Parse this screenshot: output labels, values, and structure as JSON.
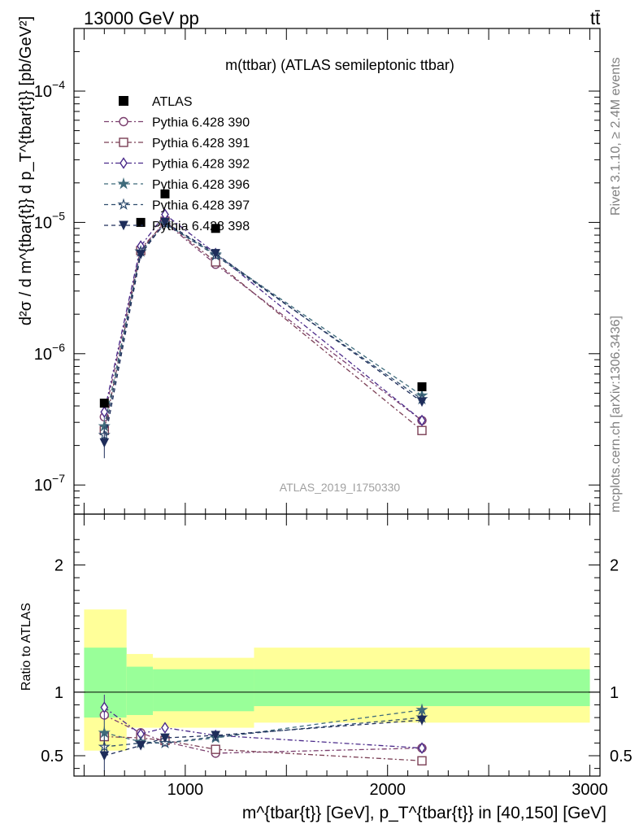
{
  "header": {
    "left": "13000 GeV pp",
    "right": "tt̄",
    "side_top": "Rivet 3.1.10, ≥ 2.4M events",
    "side_bottom": "mcplots.cern.ch [arXiv:1306.3436]"
  },
  "chart_data": [
    {
      "type": "line",
      "panel": "main",
      "title": "m(ttbar) (ATLAS semileptonic ttbar)",
      "watermark": "ATLAS_2019_I1750330",
      "ylabel": "d²σ / d m^{tbar{t}} d p_T^{tbar{t}} [pb/GeV²]",
      "yscale": "log",
      "ylim": [
        6e-08,
        0.0003
      ],
      "yticks": [
        {
          "value": 0.0001,
          "base": "10",
          "exp": "−4"
        },
        {
          "value": 1e-05,
          "base": "10",
          "exp": "−5"
        },
        {
          "value": 1e-06,
          "base": "10",
          "exp": "−6"
        },
        {
          "value": 1e-07,
          "base": "10",
          "exp": "−7"
        }
      ],
      "xlim": [
        450,
        3050
      ],
      "x": [
        600,
        780,
        900,
        1150,
        2170
      ],
      "data": {
        "name": "ATLAS",
        "values": [
          4.2e-07,
          1e-05,
          1.65e-05,
          9e-06,
          5.6e-07
        ]
      },
      "series": [
        {
          "name": "Pythia 6.428 390",
          "marker": "circle-open",
          "color": "#7b3f6e",
          "dash": "6,3,2,3",
          "values": [
            3.3e-07,
            6.3e-06,
            1e-05,
            4.8e-06,
            3.1e-07
          ],
          "errors": [
            4e-08,
            0,
            0,
            0,
            2e-08
          ]
        },
        {
          "name": "Pythia 6.428 391",
          "marker": "square-open",
          "color": "#7b3f55",
          "dash": "6,3,2,3",
          "values": [
            2.6e-07,
            6.1e-06,
            1.02e-05,
            5e-06,
            2.6e-07
          ],
          "errors": [
            3e-08,
            0,
            0,
            0,
            2e-08
          ]
        },
        {
          "name": "Pythia 6.428 392",
          "marker": "diamond-open",
          "color": "#4a2a8a",
          "dash": "6,3,2,3",
          "values": [
            3.6e-07,
            6.6e-06,
            1.15e-05,
            5.8e-06,
            3.1e-07
          ],
          "errors": [
            4e-08,
            0,
            0,
            0,
            2e-08
          ]
        },
        {
          "name": "Pythia 6.428 396",
          "marker": "star-filled",
          "color": "#3f6b7b",
          "dash": "5,4",
          "values": [
            2.8e-07,
            6e-06,
            9.8e-06,
            5.7e-06,
            4.8e-07
          ],
          "errors": [
            4e-08,
            0,
            0,
            0,
            3e-08
          ]
        },
        {
          "name": "Pythia 6.428 397",
          "marker": "star-open",
          "color": "#2f4d6e",
          "dash": "5,4",
          "values": [
            2.4e-07,
            6e-06,
            9.8e-06,
            5.6e-06,
            4.5e-07
          ],
          "errors": [
            4e-08,
            0,
            0,
            0,
            3e-08
          ]
        },
        {
          "name": "Pythia 6.428 398",
          "marker": "triangle-down-filled",
          "color": "#1e2d5a",
          "dash": "5,4",
          "values": [
            2.1e-07,
            5.7e-06,
            1e-05,
            5.8e-06,
            4.3e-07
          ],
          "errors": [
            5e-08,
            0,
            0,
            0,
            3e-08
          ]
        }
      ]
    },
    {
      "type": "line",
      "panel": "ratio",
      "ylabel": "Ratio to ATLAS",
      "xlabel": "m^{tbar{t}} [GeV], p_T^{tbar{t}} in [40,150] [GeV]",
      "ylim": [
        0.34,
        2.4
      ],
      "yticks": [
        0.5,
        1,
        2
      ],
      "xticks": [
        1000,
        2000,
        3000
      ],
      "xlim": [
        450,
        3050
      ],
      "bands": [
        {
          "x0": 500,
          "x1": 710,
          "yellow": [
            0.54,
            1.65
          ],
          "green": [
            0.8,
            1.35
          ]
        },
        {
          "x0": 710,
          "x1": 840,
          "yellow": [
            0.72,
            1.3
          ],
          "green": [
            0.82,
            1.2
          ]
        },
        {
          "x0": 840,
          "x1": 1340,
          "yellow": [
            0.72,
            1.27
          ],
          "green": [
            0.85,
            1.18
          ]
        },
        {
          "x0": 1340,
          "x1": 3000,
          "yellow": [
            0.76,
            1.35
          ],
          "green": [
            0.89,
            1.18
          ]
        }
      ],
      "x": [
        600,
        780,
        900,
        1150,
        2170
      ],
      "series": [
        {
          "name": "Pythia 6.428 390",
          "values": [
            0.82,
            0.68,
            0.61,
            0.52,
            0.56
          ],
          "errors": [
            0.1,
            0.03,
            0.02,
            0.01,
            0.03
          ]
        },
        {
          "name": "Pythia 6.428 391",
          "values": [
            0.65,
            0.64,
            0.62,
            0.55,
            0.46
          ],
          "errors": [
            0.08,
            0.03,
            0.02,
            0.01,
            0.03
          ]
        },
        {
          "name": "Pythia 6.428 392",
          "values": [
            0.88,
            0.67,
            0.72,
            0.66,
            0.56
          ],
          "errors": [
            0.1,
            0.03,
            0.02,
            0.01,
            0.03
          ]
        },
        {
          "name": "Pythia 6.428 396",
          "values": [
            0.68,
            0.61,
            0.6,
            0.64,
            0.86
          ],
          "errors": [
            0.1,
            0.03,
            0.02,
            0.01,
            0.03
          ]
        },
        {
          "name": "Pythia 6.428 397",
          "values": [
            0.57,
            0.6,
            0.6,
            0.65,
            0.8
          ],
          "errors": [
            0.1,
            0.03,
            0.02,
            0.01,
            0.03
          ]
        },
        {
          "name": "Pythia 6.428 398",
          "values": [
            0.5,
            0.58,
            0.64,
            0.66,
            0.78
          ],
          "errors": [
            0.12,
            0.03,
            0.02,
            0.01,
            0.04
          ]
        }
      ]
    }
  ]
}
